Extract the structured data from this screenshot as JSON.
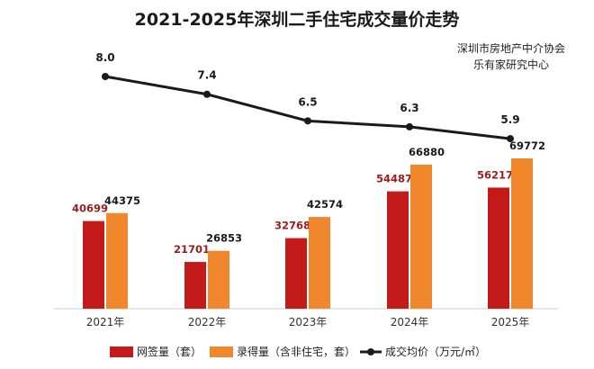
{
  "chart_data": {
    "type": "bar",
    "title": "2021-2025年深圳二手住宅成交量价走势",
    "source": [
      "深圳市房地产中介协会",
      "乐有家研究中心"
    ],
    "categories": [
      "2021年",
      "2022年",
      "2023年",
      "2024年",
      "2025年"
    ],
    "series": [
      {
        "name": "网签量（套）",
        "type": "bar",
        "color": "#c41a1a",
        "values": [
          40699,
          21701,
          32768,
          54487,
          56217
        ]
      },
      {
        "name": "录得量（含非住宅，套）",
        "type": "bar",
        "color": "#f0872c",
        "values": [
          44375,
          26853,
          42574,
          66880,
          69772
        ]
      },
      {
        "name": "成交均价（万元/㎡）",
        "type": "line",
        "color": "#1a1a1a",
        "values": [
          8.0,
          7.4,
          6.5,
          6.3,
          5.9
        ]
      }
    ],
    "value_labels": {
      "bar1": [
        "40699",
        "21701",
        "32768",
        "54487",
        "56217"
      ],
      "bar2": [
        "44375",
        "26853",
        "42574",
        "66880",
        "69772"
      ],
      "line": [
        "8.0",
        "7.4",
        "6.5",
        "6.3",
        "5.9"
      ]
    },
    "legend": {
      "position": "bottom"
    },
    "grid": false
  }
}
